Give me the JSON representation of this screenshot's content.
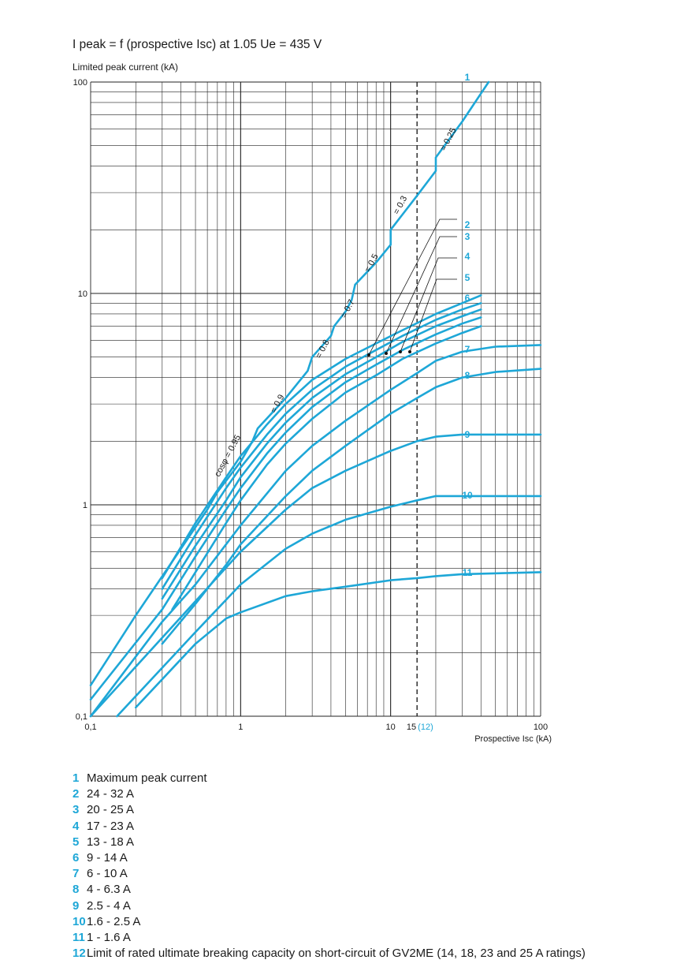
{
  "chart_data": {
    "type": "line",
    "title": "I peak = f (prospective Isc) at 1.05 Ue = 435 V",
    "ylabel": "Limited peak current (kA)",
    "xlabel": "Prospective Isc (kA)",
    "x_scale": "log",
    "y_scale": "log",
    "xlim": [
      0.1,
      100
    ],
    "ylim": [
      0.1,
      100
    ],
    "grid": true,
    "x_ticks": [
      {
        "value": 0.1,
        "label": "0,1"
      },
      {
        "value": 1,
        "label": "1"
      },
      {
        "value": 10,
        "label": "10"
      },
      {
        "value": 15,
        "label": "15"
      },
      {
        "value": 100,
        "label": "100"
      }
    ],
    "x_tick_extra": {
      "value": 15,
      "label": "(12)"
    },
    "y_ticks": [
      {
        "value": 0.1,
        "label": "0,1"
      },
      {
        "value": 1,
        "label": "1"
      },
      {
        "value": 10,
        "label": "10"
      },
      {
        "value": 100,
        "label": "100"
      }
    ],
    "series": [
      {
        "name": "1",
        "label_at": [
          25,
          98
        ],
        "points": [
          [
            0.1,
            0.14
          ],
          [
            0.2,
            0.3
          ],
          [
            0.4,
            0.62
          ],
          [
            0.6,
            0.95
          ],
          [
            0.7,
            1.15
          ],
          [
            0.8,
            1.3
          ],
          [
            0.9,
            1.45
          ],
          [
            1,
            1.6
          ],
          [
            1.2,
            2.0
          ],
          [
            1.3,
            2.3
          ],
          [
            2,
            3.2
          ],
          [
            2.8,
            4.3
          ],
          [
            3,
            5.0
          ],
          [
            4,
            6.3
          ],
          [
            4.2,
            7.0
          ],
          [
            5,
            8.2
          ],
          [
            5.5,
            9.3
          ],
          [
            5.8,
            11
          ],
          [
            8,
            14
          ],
          [
            10,
            17
          ],
          [
            10,
            20
          ],
          [
            15,
            29
          ],
          [
            20,
            38
          ],
          [
            20,
            44
          ],
          [
            30,
            65
          ],
          [
            45,
            100
          ]
        ]
      },
      {
        "name": "2",
        "label_at": [
          25,
          285
        ],
        "points": [
          [
            0.3,
            0.45
          ],
          [
            0.5,
            0.82
          ],
          [
            0.8,
            1.35
          ],
          [
            1,
            1.7
          ],
          [
            1.5,
            2.4
          ],
          [
            2,
            3.0
          ],
          [
            3,
            3.9
          ],
          [
            5,
            4.9
          ],
          [
            8,
            5.8
          ],
          [
            12,
            6.7
          ],
          [
            20,
            8.0
          ],
          [
            30,
            9.0
          ],
          [
            40,
            9.8
          ]
        ]
      },
      {
        "name": "3",
        "label_at": [
          25,
          300
        ],
        "points": [
          [
            0.3,
            0.4
          ],
          [
            0.5,
            0.72
          ],
          [
            0.8,
            1.2
          ],
          [
            1,
            1.5
          ],
          [
            1.5,
            2.15
          ],
          [
            2,
            2.7
          ],
          [
            3,
            3.5
          ],
          [
            5,
            4.5
          ],
          [
            8,
            5.4
          ],
          [
            12,
            6.3
          ],
          [
            20,
            7.5
          ],
          [
            30,
            8.4
          ],
          [
            40,
            9.0
          ]
        ]
      },
      {
        "name": "4",
        "label_at": [
          25,
          325
        ],
        "points": [
          [
            0.3,
            0.36
          ],
          [
            0.5,
            0.64
          ],
          [
            0.8,
            1.05
          ],
          [
            1,
            1.35
          ],
          [
            1.5,
            1.95
          ],
          [
            2,
            2.45
          ],
          [
            3,
            3.2
          ],
          [
            5,
            4.15
          ],
          [
            8,
            5.0
          ],
          [
            12,
            5.9
          ],
          [
            20,
            7.0
          ],
          [
            30,
            7.8
          ],
          [
            40,
            8.4
          ]
        ]
      },
      {
        "name": "5",
        "label_at": [
          25,
          352
        ],
        "points": [
          [
            0.1,
            0.12
          ],
          [
            0.3,
            0.32
          ],
          [
            0.5,
            0.57
          ],
          [
            0.8,
            0.95
          ],
          [
            1,
            1.2
          ],
          [
            1.5,
            1.75
          ],
          [
            2,
            2.2
          ],
          [
            3,
            2.9
          ],
          [
            5,
            3.8
          ],
          [
            8,
            4.6
          ],
          [
            12,
            5.4
          ],
          [
            20,
            6.4
          ],
          [
            30,
            7.2
          ],
          [
            40,
            7.7
          ]
        ]
      },
      {
        "name": "6",
        "label_at": [
          25,
          378
        ],
        "points": [
          [
            0.35,
            0.32
          ],
          [
            0.5,
            0.48
          ],
          [
            0.8,
            0.82
          ],
          [
            1,
            1.05
          ],
          [
            1.5,
            1.55
          ],
          [
            2,
            1.95
          ],
          [
            3,
            2.55
          ],
          [
            5,
            3.4
          ],
          [
            8,
            4.1
          ],
          [
            12,
            4.9
          ],
          [
            20,
            5.8
          ],
          [
            30,
            6.5
          ],
          [
            40,
            7.0
          ]
        ]
      },
      {
        "name": "7",
        "label_at": [
          25,
          443
        ],
        "points": [
          [
            0.1,
            0.1
          ],
          [
            0.3,
            0.28
          ],
          [
            0.5,
            0.42
          ],
          [
            0.8,
            0.65
          ],
          [
            1,
            0.8
          ],
          [
            2,
            1.45
          ],
          [
            3,
            1.9
          ],
          [
            5,
            2.5
          ],
          [
            10,
            3.5
          ],
          [
            15,
            4.2
          ],
          [
            20,
            4.8
          ],
          [
            30,
            5.3
          ],
          [
            50,
            5.6
          ],
          [
            100,
            5.7
          ]
        ]
      },
      {
        "name": "8",
        "label_at": [
          25,
          476
        ],
        "points": [
          [
            0.3,
            0.22
          ],
          [
            0.5,
            0.34
          ],
          [
            0.8,
            0.52
          ],
          [
            1,
            0.65
          ],
          [
            2,
            1.1
          ],
          [
            3,
            1.45
          ],
          [
            5,
            1.9
          ],
          [
            10,
            2.7
          ],
          [
            15,
            3.2
          ],
          [
            20,
            3.6
          ],
          [
            30,
            4.0
          ],
          [
            50,
            4.25
          ],
          [
            100,
            4.4
          ]
        ]
      },
      {
        "name": "9",
        "label_at": [
          25,
          551
        ],
        "points": [
          [
            0.1,
            0.1
          ],
          [
            0.5,
            0.35
          ],
          [
            1,
            0.6
          ],
          [
            2,
            0.95
          ],
          [
            3,
            1.2
          ],
          [
            5,
            1.45
          ],
          [
            10,
            1.8
          ],
          [
            15,
            2.0
          ],
          [
            20,
            2.1
          ],
          [
            30,
            2.15
          ],
          [
            100,
            2.15
          ]
        ]
      },
      {
        "name": "10",
        "label_at": [
          25,
          628
        ],
        "points": [
          [
            0.15,
            0.1
          ],
          [
            0.5,
            0.25
          ],
          [
            1,
            0.42
          ],
          [
            2,
            0.62
          ],
          [
            3,
            0.73
          ],
          [
            5,
            0.85
          ],
          [
            10,
            0.98
          ],
          [
            15,
            1.05
          ],
          [
            20,
            1.1
          ],
          [
            30,
            1.1
          ],
          [
            100,
            1.1
          ]
        ]
      },
      {
        "name": "11",
        "label_at": [
          25,
          726
        ],
        "points": [
          [
            0.2,
            0.11
          ],
          [
            0.5,
            0.22
          ],
          [
            0.8,
            0.29
          ],
          [
            1,
            0.31
          ],
          [
            2,
            0.37
          ],
          [
            3,
            0.39
          ],
          [
            5,
            0.41
          ],
          [
            10,
            0.44
          ],
          [
            15,
            0.45
          ],
          [
            20,
            0.46
          ],
          [
            30,
            0.47
          ],
          [
            100,
            0.48
          ]
        ]
      }
    ],
    "annotations": [
      {
        "text": "cosφ = 0.95",
        "at": [
          0.72,
          1.35
        ]
      },
      {
        "text": "= 0.9",
        "at": [
          1.7,
          2.7
        ]
      },
      {
        "text": "= 0.8",
        "at": [
          3.4,
          4.9
        ]
      },
      {
        "text": "= 0.7",
        "at": [
          5.0,
          7.6
        ]
      },
      {
        "text": "= 0.5",
        "at": [
          7.2,
          12.5
        ]
      },
      {
        "text": "= 0.3",
        "at": [
          11.2,
          23.5
        ]
      },
      {
        "text": "= 0.25",
        "at": [
          23.0,
          47.0
        ]
      }
    ],
    "limit_line": {
      "x": 15,
      "label": "12"
    }
  },
  "legend": [
    {
      "num": "1",
      "text": "Maximum peak current"
    },
    {
      "num": "2",
      "text": "24 - 32 A"
    },
    {
      "num": "3",
      "text": "20 - 25 A"
    },
    {
      "num": "4",
      "text": "17 - 23 A"
    },
    {
      "num": "5",
      "text": "13 - 18 A"
    },
    {
      "num": "6",
      "text": "9 - 14 A"
    },
    {
      "num": "7",
      "text": "6 - 10 A"
    },
    {
      "num": "8",
      "text": "4 - 6.3 A"
    },
    {
      "num": "9",
      "text": "2.5 - 4 A"
    },
    {
      "num": "10",
      "text": "1.6 - 2.5 A"
    },
    {
      "num": "11",
      "text": "1 - 1.6 A"
    },
    {
      "num": "12",
      "text": "Limit of rated ultimate breaking capacity on short-circuit of GV2ME (14, 18, 23 and 25 A ratings)"
    }
  ],
  "colors": {
    "curve": "#1ea7d7",
    "grid": "#222222",
    "text": "#1a1a1a"
  }
}
